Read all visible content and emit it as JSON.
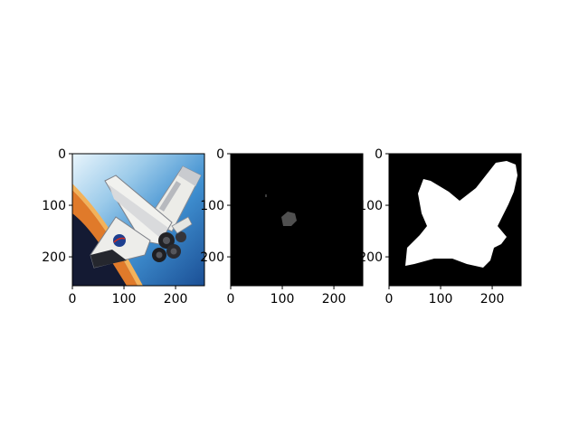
{
  "chart_data": [
    {
      "type": "image",
      "content": "photo of a space shuttle in orbit with a NASA logo on its wing, blue sky and orange horizon behind it",
      "xlim": [
        0,
        256
      ],
      "ylim": [
        256,
        0
      ],
      "xticks": [
        0,
        100,
        200
      ],
      "yticks": [
        0,
        100,
        200
      ]
    },
    {
      "type": "image",
      "content": "almost entirely black image with a small dark-grey blob near the centre and a tiny speck to its upper left",
      "xlim": [
        0,
        256
      ],
      "ylim": [
        256,
        0
      ],
      "xticks": [
        0,
        100,
        200
      ],
      "yticks": [
        0,
        100,
        200
      ]
    },
    {
      "type": "image",
      "content": "binary mask: white shuttle-shaped silhouette on a black background",
      "xlim": [
        0,
        256
      ],
      "ylim": [
        256,
        0
      ],
      "xticks": [
        0,
        100,
        200
      ],
      "yticks": [
        0,
        100,
        200
      ]
    }
  ],
  "colors": {
    "background": "#ffffff",
    "mask_bg": "#000000",
    "mask_fg": "#ffffff",
    "blob": "#505050",
    "sky_light": "#e8f4fb",
    "sky_blue": "#3f8fd0",
    "horizon_orange": "#e07a2a",
    "space_dark": "#101428",
    "shuttle_white": "#f1f1ee",
    "shuttle_shadow": "#7d8088",
    "engine_dark": "#222226",
    "nasa_blue": "#1d3f8f"
  }
}
